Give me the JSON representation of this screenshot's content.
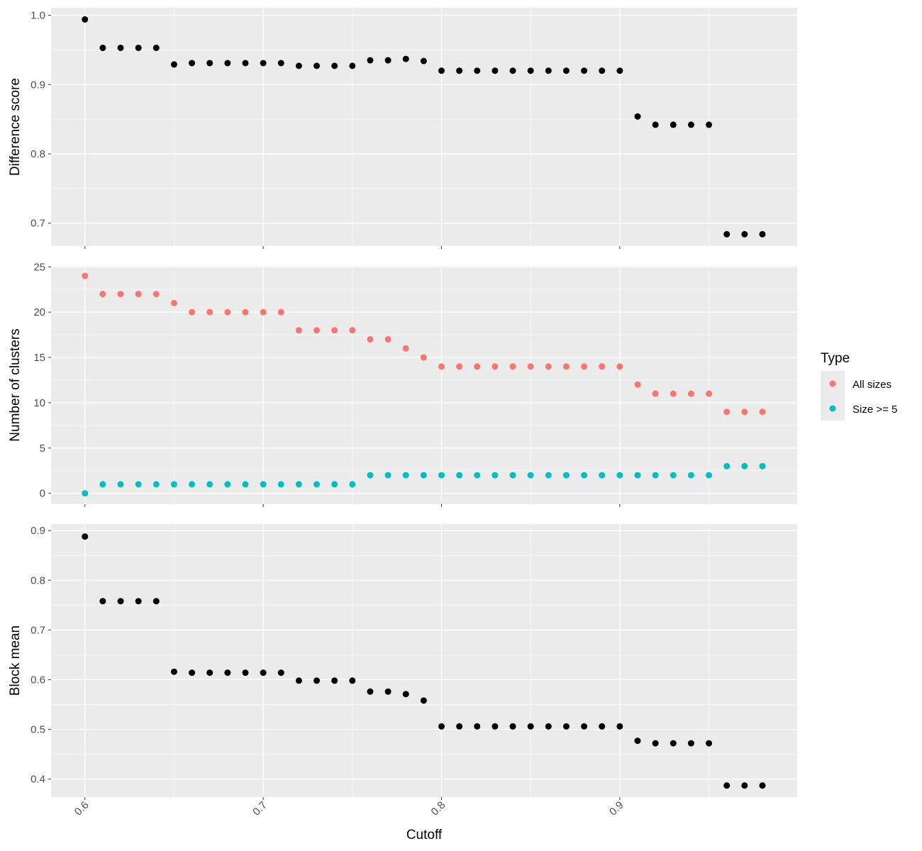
{
  "chart_data": {
    "type": "scatter",
    "xlabel": "Cutoff",
    "xlim": [
      0.581,
      0.9995
    ],
    "x_ticks": [
      0.6,
      0.7,
      0.8,
      0.9
    ],
    "x_tick_labels": [
      "0.6",
      "0.7",
      "0.8",
      "0.9"
    ],
    "x_tick_label_rotation_deg": 45,
    "x": [
      0.6,
      0.61,
      0.62,
      0.63,
      0.64,
      0.65,
      0.66,
      0.67,
      0.68,
      0.69,
      0.7,
      0.71,
      0.72,
      0.73,
      0.74,
      0.75,
      0.76,
      0.77,
      0.78,
      0.79,
      0.8,
      0.81,
      0.82,
      0.83,
      0.84,
      0.85,
      0.86,
      0.87,
      0.88,
      0.89,
      0.9,
      0.91,
      0.92,
      0.93,
      0.94,
      0.95,
      0.96,
      0.97,
      0.98
    ],
    "grid": true,
    "background": "#ebebeb",
    "gridline_color": "#ffffff",
    "legend": {
      "position": "right",
      "title": "Type",
      "entries": [
        {
          "label": "All sizes",
          "color": "#F8766D"
        },
        {
          "label": "Size >= 5",
          "color": "#00BFC4"
        }
      ]
    },
    "panels": [
      {
        "ylabel": "Difference score",
        "ylim": [
          0.6669,
          1.0108
        ],
        "y_ticks": [
          0.7,
          0.8,
          0.9,
          1.0
        ],
        "y_tick_labels": [
          "0.7",
          "0.8",
          "0.9",
          "1.0"
        ],
        "series": [
          {
            "color": "#000000",
            "values": [
              0.994,
              0.953,
              0.953,
              0.953,
              0.953,
              0.929,
              0.931,
              0.931,
              0.931,
              0.931,
              0.931,
              0.931,
              0.927,
              0.927,
              0.927,
              0.927,
              0.935,
              0.935,
              0.937,
              0.934,
              0.92,
              0.92,
              0.92,
              0.92,
              0.92,
              0.92,
              0.92,
              0.92,
              0.92,
              0.92,
              0.92,
              0.854,
              0.842,
              0.842,
              0.842,
              0.842,
              0.684,
              0.684,
              0.684
            ]
          }
        ]
      },
      {
        "ylabel": "Number of clusters",
        "ylim": [
          -1.2,
          25.1
        ],
        "y_ticks": [
          0,
          5,
          10,
          15,
          20,
          25
        ],
        "y_tick_labels": [
          "0",
          "5",
          "10",
          "15",
          "20",
          "25"
        ],
        "series": [
          {
            "name": "All sizes",
            "color": "#F8766D",
            "values": [
              24,
              22,
              22,
              22,
              22,
              21,
              20,
              20,
              20,
              20,
              20,
              20,
              18,
              18,
              18,
              18,
              17,
              17,
              16,
              15,
              14,
              14,
              14,
              14,
              14,
              14,
              14,
              14,
              14,
              14,
              14,
              12,
              11,
              11,
              11,
              11,
              9,
              9,
              9
            ]
          },
          {
            "name": "Size >= 5",
            "color": "#00BFC4",
            "values": [
              0,
              1,
              1,
              1,
              1,
              1,
              1,
              1,
              1,
              1,
              1,
              1,
              1,
              1,
              1,
              1,
              2,
              2,
              2,
              2,
              2,
              2,
              2,
              2,
              2,
              2,
              2,
              2,
              2,
              2,
              2,
              2,
              2,
              2,
              2,
              2,
              3,
              3,
              3
            ]
          }
        ]
      },
      {
        "ylabel": "Block mean",
        "ylim": [
          0.3637,
          0.9131
        ],
        "y_ticks": [
          0.4,
          0.5,
          0.6,
          0.7,
          0.8,
          0.9
        ],
        "y_tick_labels": [
          "0.4",
          "0.5",
          "0.6",
          "0.7",
          "0.8",
          "0.9"
        ],
        "series": [
          {
            "color": "#000000",
            "values": [
              0.888,
              0.758,
              0.758,
              0.758,
              0.758,
              0.616,
              0.614,
              0.614,
              0.614,
              0.614,
              0.614,
              0.614,
              0.598,
              0.598,
              0.598,
              0.598,
              0.576,
              0.576,
              0.571,
              0.558,
              0.506,
              0.506,
              0.506,
              0.506,
              0.506,
              0.506,
              0.506,
              0.506,
              0.506,
              0.506,
              0.506,
              0.477,
              0.472,
              0.472,
              0.472,
              0.472,
              0.387,
              0.387,
              0.387
            ]
          }
        ]
      }
    ]
  }
}
